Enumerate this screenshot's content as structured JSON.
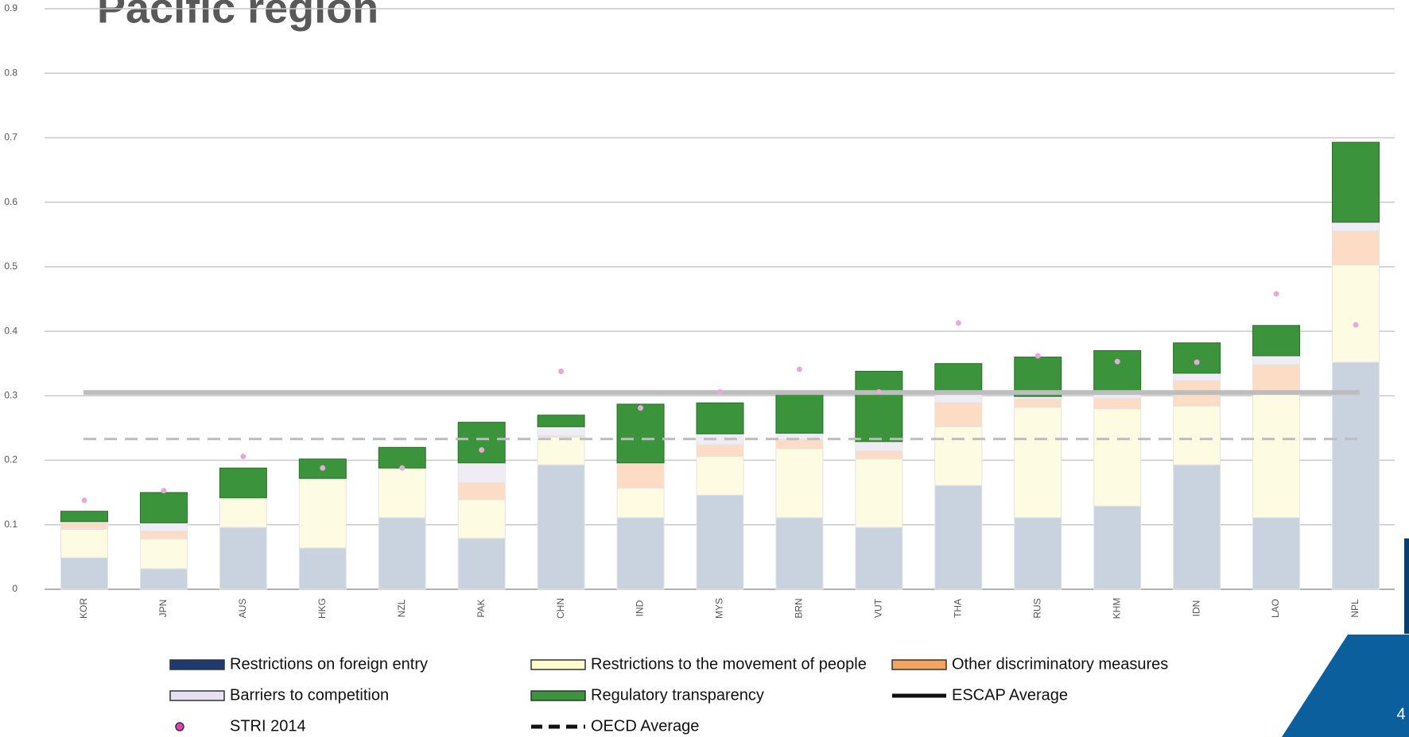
{
  "chart_data": {
    "type": "stacked-bar",
    "title": "Pacific region",
    "categories": [
      "KOR",
      "JPN",
      "AUS",
      "HKG",
      "NZL",
      "PAK",
      "CHN",
      "IND",
      "MYS",
      "BRN",
      "VUT",
      "THA",
      "RUS",
      "KHM",
      "IDN",
      "LAO",
      "NPL"
    ],
    "series": [
      {
        "name": "Restrictions on foreign entry",
        "color": "#c9d3e0",
        "values": [
          0.049,
          0.032,
          0.096,
          0.064,
          0.111,
          0.079,
          0.193,
          0.111,
          0.146,
          0.111,
          0.096,
          0.161,
          0.111,
          0.129,
          0.193,
          0.111,
          0.352
        ]
      },
      {
        "name": "Restrictions to the movement of people",
        "color": "#fdfbe2",
        "values": [
          0.044,
          0.046,
          0.044,
          0.106,
          0.077,
          0.06,
          0.043,
          0.046,
          0.06,
          0.107,
          0.106,
          0.091,
          0.171,
          0.151,
          0.091,
          0.195,
          0.151
        ]
      },
      {
        "name": "Other discriminatory measures",
        "color": "#fcdcc4",
        "values": [
          0.01,
          0.012,
          0.002,
          0.001,
          0,
          0.026,
          0.002,
          0.038,
          0.018,
          0.014,
          0.012,
          0.037,
          0.013,
          0.016,
          0.039,
          0.042,
          0.052
        ]
      },
      {
        "name": "Barriers to competition",
        "color": "#efecf5",
        "values": [
          0.002,
          0.013,
          0,
          0.001,
          0,
          0.031,
          0.014,
          0.001,
          0.017,
          0.01,
          0.015,
          0.014,
          0.004,
          0.011,
          0.012,
          0.014,
          0.014
        ]
      },
      {
        "name": "Regulatory transparency",
        "color": "#3b933b",
        "values": [
          0.016,
          0.047,
          0.046,
          0.03,
          0.032,
          0.063,
          0.018,
          0.091,
          0.048,
          0.065,
          0.109,
          0.047,
          0.061,
          0.063,
          0.047,
          0.047,
          0.124
        ]
      }
    ],
    "points": {
      "name": "STRI 2014",
      "color": "#e8a8d8",
      "values": [
        0.138,
        0.153,
        0.206,
        0.188,
        0.188,
        0.216,
        0.338,
        0.281,
        0.306,
        0.341,
        0.306,
        0.413,
        0.362,
        0.353,
        0.352,
        0.458,
        0.41
      ]
    },
    "lines": [
      {
        "name": "ESCAP Average",
        "value": 0.305,
        "color": "#bdbdbd",
        "dash": false
      },
      {
        "name": "OECD Average",
        "value": 0.233,
        "color": "#bdbdbd",
        "dash": true
      }
    ],
    "ylim": [
      0,
      0.9
    ],
    "yticks": [
      0,
      0.1,
      0.2,
      0.3,
      0.4,
      0.5,
      0.6,
      0.7,
      0.8,
      0.9
    ],
    "grid": true,
    "page_number": "4"
  }
}
